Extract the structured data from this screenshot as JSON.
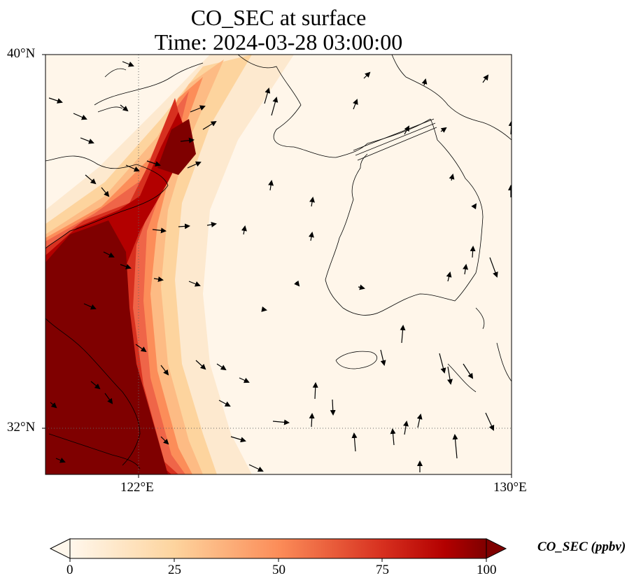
{
  "title": {
    "line1": "CO_SEC at surface",
    "line2": "Time: 2024-03-28 03:00:00"
  },
  "map": {
    "extent": {
      "lon_min": 120,
      "lon_max": 130,
      "lat_min": 31,
      "lat_max": 40
    },
    "lat_labels": [
      {
        "value": 40,
        "text": "40°N"
      },
      {
        "value": 32,
        "text": "32°N"
      }
    ],
    "lon_labels": [
      {
        "value": 122,
        "text": "122°E"
      },
      {
        "value": 130,
        "text": "130°E"
      }
    ],
    "gridlines": {
      "lon": [
        122
      ],
      "lat": [
        32
      ],
      "style": "dotted"
    },
    "colormap": "OrRd",
    "high_value_color": "#7f0000"
  },
  "colorbar": {
    "label": "CO_SEC (ppbv)",
    "min": 0,
    "max": 100,
    "ticks": [
      {
        "value": 0,
        "text": "0"
      },
      {
        "value": 25,
        "text": "25"
      },
      {
        "value": 50,
        "text": "50"
      },
      {
        "value": 75,
        "text": "75"
      },
      {
        "value": 100,
        "text": "100"
      }
    ],
    "extend": "both"
  }
}
